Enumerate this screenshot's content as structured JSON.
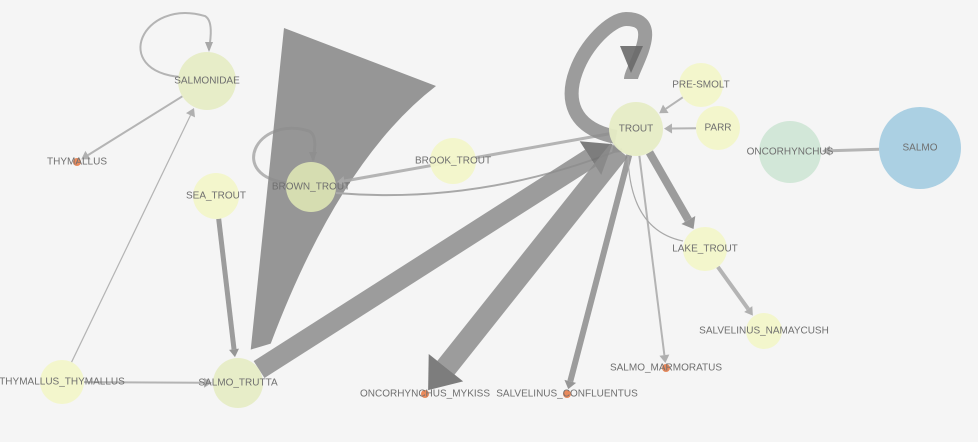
{
  "colors": {
    "background": "#f5f5f5",
    "edge": "#8c8c8c",
    "edge_light": "#a8a8a8",
    "node_yellow": "#f2f5c9",
    "node_green": "#e6ecc5",
    "node_olive": "#d9e0b2",
    "node_teal": "#d0e6d6",
    "node_blue": "#a7cde2",
    "node_dot": "#ea8a5c",
    "label": "#6f6f6f"
  },
  "nodes": [
    {
      "id": "salmonidae",
      "label": "SALMONIDAE",
      "kind": "green"
    },
    {
      "id": "thymallus",
      "label": "THYMALLUS",
      "kind": "dot"
    },
    {
      "id": "sea_trout",
      "label": "SEA_TROUT",
      "kind": "yellow"
    },
    {
      "id": "brown_trout",
      "label": "BROWN_TROUT",
      "kind": "olive"
    },
    {
      "id": "brook_trout",
      "label": "BROOK_TROUT",
      "kind": "yellow"
    },
    {
      "id": "trout",
      "label": "TROUT",
      "kind": "green"
    },
    {
      "id": "pre_smolt",
      "label": "PRE-SMOLT",
      "kind": "yellow"
    },
    {
      "id": "parr",
      "label": "PARR",
      "kind": "yellow"
    },
    {
      "id": "oncorhynchus",
      "label": "ONCORHYNCHUS",
      "kind": "teal"
    },
    {
      "id": "salmo",
      "label": "SALMO",
      "kind": "blue"
    },
    {
      "id": "lake_trout",
      "label": "LAKE_TROUT",
      "kind": "yellow"
    },
    {
      "id": "salvelinus_namaycush",
      "label": "SALVELINUS_NAMAYCUSH",
      "kind": "yellow"
    },
    {
      "id": "salmo_marmoratus",
      "label": "SALMO_MARMORATUS",
      "kind": "dot"
    },
    {
      "id": "salvelinus_confluentus",
      "label": "SALVELINUS_CONFLUENTUS",
      "kind": "dot"
    },
    {
      "id": "oncorhynchus_mykiss",
      "label": "ONCORHYNCHUS_MYKISS",
      "kind": "dot"
    },
    {
      "id": "salmo_trutta",
      "label": "SALMO_TRUTTA",
      "kind": "green"
    },
    {
      "id": "thymallus_thymallus",
      "label": "THYMALLUS_THYMALLUS",
      "kind": "yellow"
    }
  ],
  "edges": [
    {
      "source": "salmonidae",
      "target": "salmonidae",
      "weight": 2
    },
    {
      "source": "salmonidae",
      "target": "thymallus",
      "weight": 2
    },
    {
      "source": "thymallus_thymallus",
      "target": "salmonidae",
      "weight": 1
    },
    {
      "source": "thymallus_thymallus",
      "target": "salmo_trutta",
      "weight": 2
    },
    {
      "source": "sea_trout",
      "target": "salmo_trutta",
      "weight": 5
    },
    {
      "source": "brown_trout",
      "target": "brown_trout",
      "weight": 3
    },
    {
      "source": "salmo_trutta",
      "target": "brown_trout",
      "weight": 40
    },
    {
      "source": "trout",
      "target": "brown_trout",
      "weight": 3
    },
    {
      "source": "brown_trout",
      "target": "trout",
      "weight": 2
    },
    {
      "source": "salmo_trutta",
      "target": "trout",
      "weight": 20
    },
    {
      "source": "trout",
      "target": "oncorhynchus_mykiss",
      "weight": 22
    },
    {
      "source": "trout",
      "target": "salvelinus_confluentus",
      "weight": 6
    },
    {
      "source": "trout",
      "target": "salmo_marmoratus",
      "weight": 2
    },
    {
      "source": "trout",
      "target": "trout",
      "weight": 14
    },
    {
      "source": "pre_smolt",
      "target": "trout",
      "weight": 2
    },
    {
      "source": "parr",
      "target": "trout",
      "weight": 2
    },
    {
      "source": "trout",
      "target": "lake_trout",
      "weight": 8
    },
    {
      "source": "lake_trout",
      "target": "trout",
      "weight": 1
    },
    {
      "source": "lake_trout",
      "target": "salvelinus_namaycush",
      "weight": 4
    },
    {
      "source": "salmo",
      "target": "oncorhynchus",
      "weight": 3
    }
  ]
}
